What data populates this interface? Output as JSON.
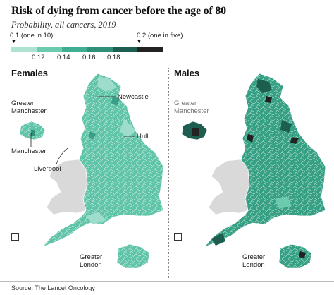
{
  "title": "Risk of dying from cancer before the age of 80",
  "subtitle": "Probability, all cancers, 2019",
  "legend": {
    "min_label": "0.1 (one in 10)",
    "max_label": "0.2 (one in five)",
    "ticks": [
      "0.12",
      "0.14",
      "0.16",
      "0.18"
    ],
    "colors": [
      "#aee3d3",
      "#6ccaae",
      "#3fae92",
      "#2f8f78",
      "#1e5e50",
      "#222222"
    ]
  },
  "panels": {
    "females": {
      "title": "Females",
      "labels": {
        "greater_manchester": "Greater\nManchester",
        "manchester": "Manchester",
        "liverpool": "Liverpool",
        "newcastle": "Newcastle",
        "hull": "Hull",
        "greater_london": "Greater\nLondon"
      }
    },
    "males": {
      "title": "Males",
      "labels": {
        "greater_manchester": "Greater\nManchester",
        "greater_london": "Greater\nLondon"
      }
    }
  },
  "source": "Source: The Lancet Oncology"
}
